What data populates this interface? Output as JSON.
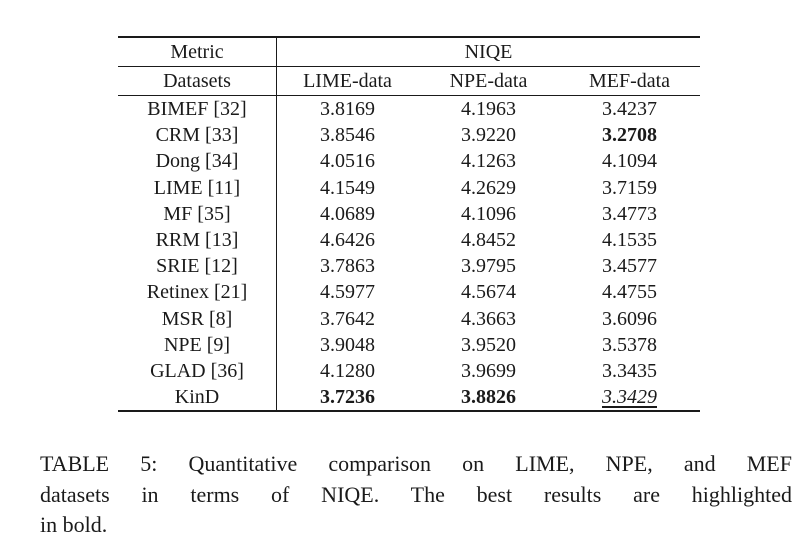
{
  "table": {
    "header": {
      "metric_label": "Metric",
      "metric_value_label": "NIQE",
      "datasets_label": "Datasets",
      "columns": [
        "LIME-data",
        "NPE-data",
        "MEF-data"
      ]
    },
    "rows": [
      {
        "method": "BIMEF [32]",
        "values": [
          "3.8169",
          "4.1963",
          "3.4237"
        ],
        "styles": [
          "",
          "",
          ""
        ]
      },
      {
        "method": "CRM [33]",
        "values": [
          "3.8546",
          "3.9220",
          "3.2708"
        ],
        "styles": [
          "",
          "",
          "bold"
        ]
      },
      {
        "method": "Dong [34]",
        "values": [
          "4.0516",
          "4.1263",
          "4.1094"
        ],
        "styles": [
          "",
          "",
          ""
        ]
      },
      {
        "method": "LIME [11]",
        "values": [
          "4.1549",
          "4.2629",
          "3.7159"
        ],
        "styles": [
          "",
          "",
          ""
        ]
      },
      {
        "method": "MF [35]",
        "values": [
          "4.0689",
          "4.1096",
          "3.4773"
        ],
        "styles": [
          "",
          "",
          ""
        ]
      },
      {
        "method": "RRM [13]",
        "values": [
          "4.6426",
          "4.8452",
          "4.1535"
        ],
        "styles": [
          "",
          "",
          ""
        ]
      },
      {
        "method": "SRIE [12]",
        "values": [
          "3.7863",
          "3.9795",
          "3.4577"
        ],
        "styles": [
          "",
          "",
          ""
        ]
      },
      {
        "method": "Retinex [21]",
        "values": [
          "4.5977",
          "4.5674",
          "4.4755"
        ],
        "styles": [
          "",
          "",
          ""
        ]
      },
      {
        "method": "MSR [8]",
        "values": [
          "3.7642",
          "4.3663",
          "3.6096"
        ],
        "styles": [
          "",
          "",
          ""
        ]
      },
      {
        "method": "NPE [9]",
        "values": [
          "3.9048",
          "3.9520",
          "3.5378"
        ],
        "styles": [
          "",
          "",
          ""
        ]
      },
      {
        "method": "GLAD [36]",
        "values": [
          "4.1280",
          "3.9699",
          "3.3435"
        ],
        "styles": [
          "",
          "",
          ""
        ]
      },
      {
        "method": "KinD",
        "values": [
          "3.7236",
          "3.8826",
          "3.3429"
        ],
        "styles": [
          "bold",
          "bold",
          "italic-underline"
        ]
      }
    ]
  },
  "caption": {
    "lines": [
      "TABLE 5: Quantitative comparison on LIME, NPE, and MEF",
      "datasets in terms of NIQE. The best results are highlighted",
      "in bold."
    ],
    "full_text": "TABLE 5: Quantitative comparison on LIME, NPE, and MEF datasets in terms of NIQE. The best results are highlighted in bold."
  },
  "colors": {
    "text": "#1a1a1a",
    "background": "#ffffff"
  }
}
